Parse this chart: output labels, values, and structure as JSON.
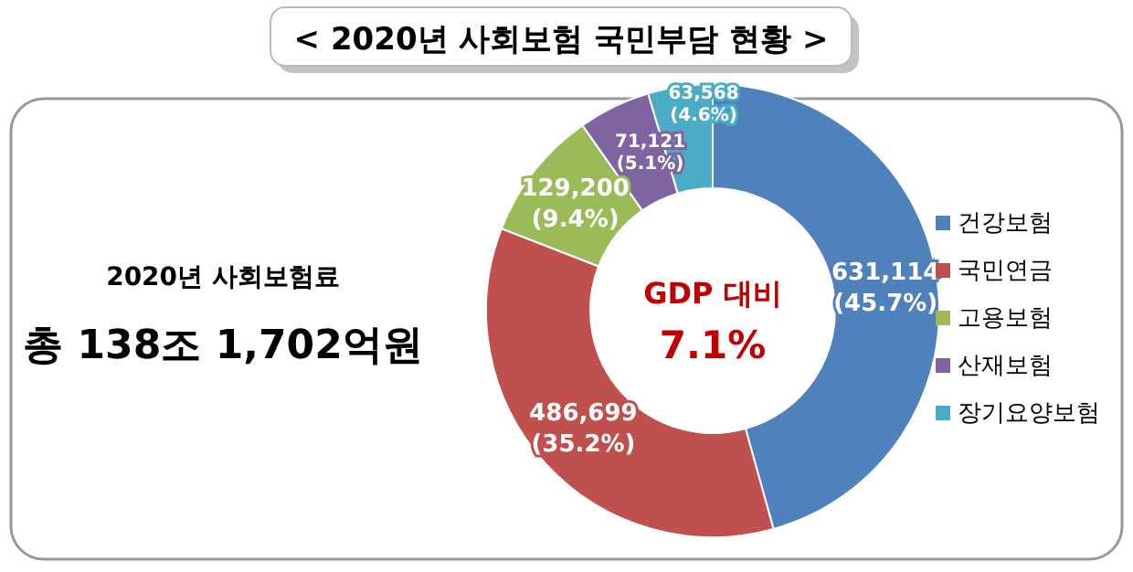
{
  "chart_data": {
    "type": "donut",
    "title": "< 2020년 사회보험 국민부담 현황 >",
    "categories": [
      "건강보험",
      "국민연금",
      "고용보험",
      "산재보험",
      "장기요양보험"
    ],
    "values": [
      631114,
      486699,
      129200,
      71121,
      63568
    ],
    "colors": [
      "#4f81bd",
      "#c0504d",
      "#9bbb59",
      "#8064a2",
      "#4bacc6"
    ],
    "value_labels": [
      "631,114\n(45.7%)",
      "486,699\n(35.2%)",
      "129,200\n(9.4%)",
      "71,121\n(5.1%)",
      "63,568\n(4.6%)"
    ],
    "annotations": [
      "GDP 대비",
      "7.1%",
      "2020년 사회보험료",
      "총 138조 1,702억원"
    ],
    "legend": "right"
  }
}
